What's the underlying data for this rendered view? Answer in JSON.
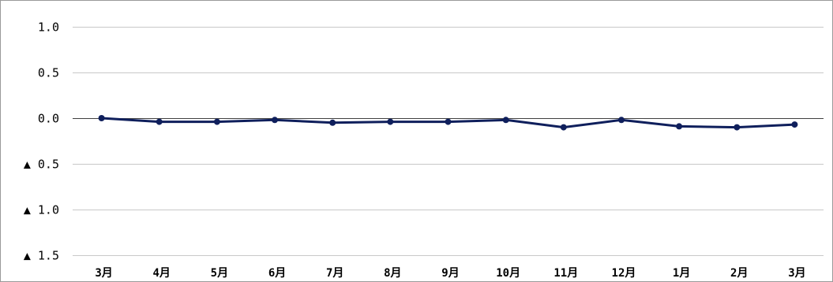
{
  "chart_data": {
    "type": "line",
    "title": "",
    "xlabel": "",
    "ylabel": "",
    "categories": [
      "3月",
      "4月",
      "5月",
      "6月",
      "7月",
      "8月",
      "9月",
      "10月",
      "11月",
      "12月",
      "1月",
      "2月",
      "3月"
    ],
    "series": [
      {
        "values": [
          0.0,
          -0.04,
          -0.04,
          -0.02,
          -0.05,
          -0.04,
          -0.04,
          -0.02,
          -0.1,
          -0.02,
          -0.09,
          -0.1,
          -0.07
        ]
      }
    ],
    "ylim": [
      -1.5,
      1.0
    ],
    "yticks": [
      1.0,
      0.5,
      0.0,
      -0.5,
      -1.0,
      -1.5
    ],
    "ytick_labels": [
      "1.0",
      "0.5",
      "0.0",
      "▲ 0.5",
      "▲ 1.0",
      "▲ 1.5"
    ],
    "grid": true,
    "legend": "none",
    "colors": {
      "line": "#0f1f5c",
      "marker": "#0f1f5c",
      "grid": "#c8c8c8",
      "zero_line": "#404040"
    }
  }
}
